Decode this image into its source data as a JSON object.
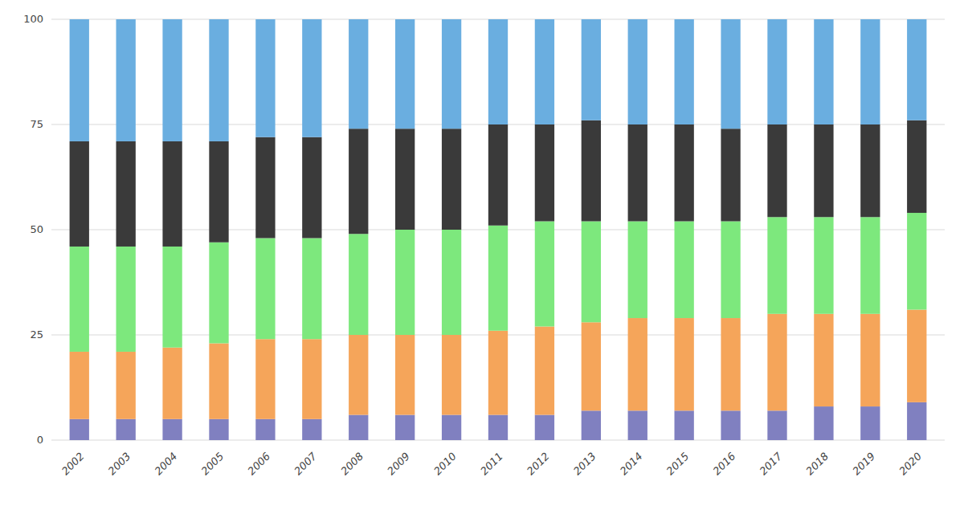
{
  "chart_data": {
    "type": "bar",
    "stacked": true,
    "grid": true,
    "categories": [
      "2002",
      "2003",
      "2004",
      "2005",
      "2006",
      "2007",
      "2008",
      "2009",
      "2010",
      "2011",
      "2012",
      "2013",
      "2014",
      "2015",
      "2016",
      "2017",
      "2018",
      "2019",
      "2020"
    ],
    "series": [
      {
        "color": "#8080c0",
        "values": [
          5,
          5,
          5,
          5,
          5,
          5,
          6,
          6,
          6,
          6,
          6,
          7,
          7,
          7,
          7,
          7,
          8,
          8,
          9
        ]
      },
      {
        "color": "#f5a55a",
        "values": [
          16,
          16,
          17,
          18,
          19,
          19,
          19,
          19,
          19,
          20,
          21,
          21,
          22,
          22,
          22,
          23,
          22,
          22,
          22
        ]
      },
      {
        "color": "#7de87d",
        "values": [
          25,
          25,
          24,
          24,
          24,
          24,
          24,
          25,
          25,
          25,
          25,
          24,
          23,
          23,
          23,
          23,
          23,
          23,
          23
        ]
      },
      {
        "color": "#3a3a3a",
        "values": [
          25,
          25,
          25,
          24,
          24,
          24,
          25,
          24,
          24,
          24,
          23,
          24,
          23,
          23,
          22,
          22,
          22,
          22,
          22
        ]
      },
      {
        "color": "#6aaee0",
        "values": [
          29,
          29,
          29,
          29,
          28,
          28,
          26,
          26,
          26,
          25,
          25,
          24,
          25,
          25,
          26,
          25,
          25,
          25,
          24
        ]
      }
    ],
    "ylim": [
      0,
      100
    ],
    "yticks": [
      0,
      25,
      50,
      75,
      100
    ]
  }
}
